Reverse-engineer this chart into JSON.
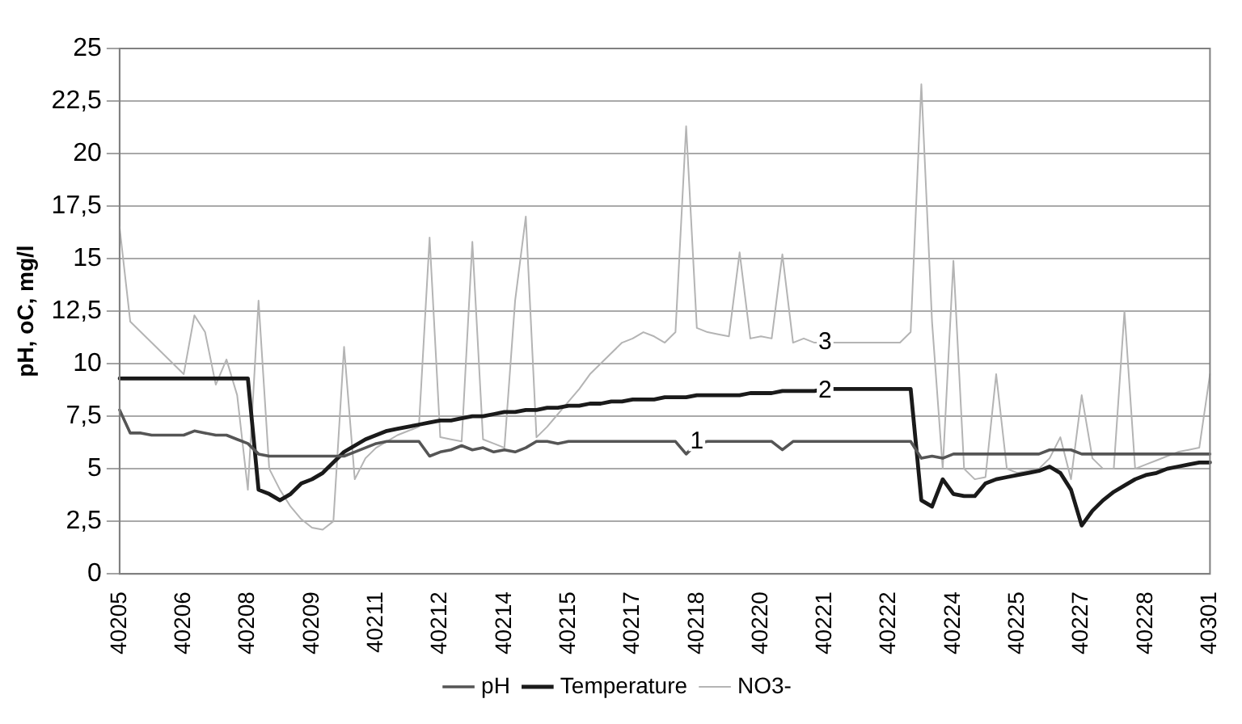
{
  "chart_data": {
    "type": "line",
    "ylabel": "pH, oC, mg/l",
    "categories": [
      "40205",
      null,
      null,
      null,
      null,
      null,
      "40206",
      null,
      null,
      null,
      null,
      null,
      "40208",
      null,
      null,
      null,
      null,
      null,
      "40209",
      null,
      null,
      null,
      null,
      null,
      "40211",
      null,
      null,
      null,
      null,
      null,
      "40212",
      null,
      null,
      null,
      null,
      null,
      "40214",
      null,
      null,
      null,
      null,
      null,
      "40215",
      null,
      null,
      null,
      null,
      null,
      "40217",
      null,
      null,
      null,
      null,
      null,
      "40218",
      null,
      null,
      null,
      null,
      null,
      "40220",
      null,
      null,
      null,
      null,
      null,
      "40221",
      null,
      null,
      null,
      null,
      null,
      "40222",
      null,
      null,
      null,
      null,
      null,
      "40224",
      null,
      null,
      null,
      null,
      null,
      "40225",
      null,
      null,
      null,
      null,
      null,
      "40227",
      null,
      null,
      null,
      null,
      null,
      "40228",
      null,
      null,
      null,
      null,
      null,
      "40301"
    ],
    "series": [
      {
        "name": "pH",
        "color": "#555555",
        "values": [
          7.8,
          6.7,
          6.7,
          6.6,
          6.6,
          6.6,
          6.6,
          6.8,
          6.7,
          6.6,
          6.6,
          6.4,
          6.2,
          5.7,
          5.6,
          5.6,
          5.6,
          5.6,
          5.6,
          5.6,
          5.6,
          5.6,
          5.8,
          6.0,
          6.2,
          6.3,
          6.3,
          6.3,
          6.3,
          5.6,
          5.8,
          5.9,
          6.1,
          5.9,
          6.0,
          5.8,
          5.9,
          5.8,
          6.0,
          6.3,
          6.3,
          6.2,
          6.3,
          6.3,
          6.3,
          6.3,
          6.3,
          6.3,
          6.3,
          6.3,
          6.3,
          6.3,
          6.3,
          5.7,
          6.2,
          6.3,
          6.3,
          6.3,
          6.3,
          6.3,
          6.3,
          6.3,
          5.9,
          6.3,
          6.3,
          6.3,
          6.3,
          6.3,
          6.3,
          6.3,
          6.3,
          6.3,
          6.3,
          6.3,
          6.3,
          5.5,
          5.6,
          5.5,
          5.7,
          5.7,
          5.7,
          5.7,
          5.7,
          5.7,
          5.7,
          5.7,
          5.7,
          5.9,
          5.9,
          5.9,
          5.7,
          5.7,
          5.7,
          5.7,
          5.7,
          5.7,
          5.7,
          5.7,
          5.7,
          5.7,
          5.7,
          5.7,
          5.7
        ],
        "value_labels": [
          null,
          null,
          null,
          null,
          null,
          null,
          null,
          null,
          null,
          null,
          null,
          null,
          null,
          null,
          null,
          null,
          null,
          null,
          null,
          null,
          null,
          null,
          null,
          null,
          null,
          null,
          null,
          null,
          null,
          null,
          null,
          null,
          null,
          null,
          null,
          null,
          null,
          null,
          null,
          null,
          null,
          null,
          null,
          null,
          null,
          null,
          null,
          null,
          null,
          null,
          null,
          null,
          null,
          null,
          null,
          null,
          null,
          null,
          null,
          null,
          null,
          null,
          null,
          null,
          null,
          null,
          null,
          null,
          null,
          null,
          null,
          null,
          null,
          null,
          null,
          null,
          null,
          null,
          null,
          null,
          null,
          null,
          null,
          null,
          null,
          null,
          null,
          null,
          null,
          null,
          null,
          null,
          null,
          null,
          null,
          null,
          null,
          null,
          null,
          null,
          null,
          null,
          null
        ]
      },
      {
        "name": "Temperature",
        "color": "#1a1a1a",
        "values": [
          9.3,
          9.3,
          9.3,
          9.3,
          9.3,
          9.3,
          9.3,
          9.3,
          9.3,
          9.3,
          9.3,
          9.3,
          9.3,
          4.0,
          3.8,
          3.5,
          3.8,
          4.3,
          4.5,
          4.8,
          5.3,
          5.8,
          6.1,
          6.4,
          6.6,
          6.8,
          6.9,
          7.0,
          7.1,
          7.2,
          7.3,
          7.3,
          7.4,
          7.5,
          7.5,
          7.6,
          7.7,
          7.7,
          7.8,
          7.8,
          7.9,
          7.9,
          8.0,
          8.0,
          8.1,
          8.1,
          8.2,
          8.2,
          8.3,
          8.3,
          8.3,
          8.4,
          8.4,
          8.4,
          8.5,
          8.5,
          8.5,
          8.5,
          8.5,
          8.6,
          8.6,
          8.6,
          8.7,
          8.7,
          8.7,
          8.7,
          8.8,
          8.8,
          8.8,
          8.8,
          8.8,
          8.8,
          8.8,
          8.8,
          8.8,
          3.5,
          3.2,
          4.5,
          3.8,
          3.7,
          3.7,
          4.3,
          4.5,
          4.6,
          4.7,
          4.8,
          4.9,
          5.1,
          4.8,
          4.0,
          2.3,
          3.0,
          3.5,
          3.9,
          4.2,
          4.5,
          4.7,
          4.8,
          5.0,
          5.1,
          5.2,
          5.3,
          5.3
        ],
        "value_labels": [
          null,
          null,
          null,
          null,
          null,
          null,
          null,
          null,
          null,
          null,
          null,
          null,
          null,
          null,
          null,
          null,
          null,
          null,
          null,
          null,
          null,
          null,
          null,
          null,
          null,
          null,
          null,
          null,
          null,
          null,
          null,
          null,
          null,
          null,
          null,
          null,
          null,
          null,
          null,
          null,
          null,
          null,
          null,
          null,
          null,
          null,
          null,
          null,
          null,
          null,
          null,
          null,
          null,
          null,
          null,
          null,
          null,
          null,
          null,
          null,
          null,
          null,
          null,
          null,
          null,
          null,
          null,
          null,
          null,
          null,
          null,
          null,
          null,
          null,
          null,
          null,
          null,
          null,
          null,
          null,
          null,
          null,
          null,
          null,
          null,
          null,
          null,
          null,
          null,
          null,
          null,
          null,
          null,
          null,
          null,
          null,
          null,
          null,
          null,
          null,
          null,
          null,
          null
        ]
      },
      {
        "name": "NO3-",
        "color": "#b4b4b4",
        "values": [
          16.5,
          12,
          11.5,
          11,
          10.5,
          10,
          9.5,
          12.3,
          11.5,
          9,
          10.2,
          8.5,
          4,
          13,
          5,
          4,
          3.2,
          2.6,
          2.2,
          2.1,
          2.5,
          10.8,
          4.5,
          5.5,
          6,
          6.3,
          6.6,
          6.8,
          7,
          16,
          6.5,
          6.4,
          6.3,
          15.8,
          6.4,
          6.2,
          6,
          13,
          17,
          6.5,
          7,
          7.6,
          8.2,
          8.8,
          9.5,
          10,
          10.5,
          11,
          11.2,
          11.5,
          11.3,
          11,
          11.5,
          21.3,
          11.7,
          11.5,
          11.4,
          11.3,
          15.3,
          11.2,
          11.3,
          11.2,
          15.2,
          11,
          11.2,
          11,
          11,
          11,
          11,
          11,
          11,
          11,
          11,
          11,
          11.5,
          23.3,
          12,
          5,
          14.9,
          5,
          4.5,
          4.6,
          9.5,
          5,
          4.8,
          4.9,
          5,
          5.5,
          6.5,
          4.5,
          8.5,
          5.5,
          5,
          5,
          12.5,
          5,
          5.2,
          5.4,
          5.6,
          5.8,
          5.9,
          6,
          9.5
        ],
        "value_labels": [
          null,
          null,
          null,
          null,
          null,
          null,
          null,
          null,
          null,
          null,
          null,
          null,
          null,
          null,
          null,
          null,
          null,
          null,
          null,
          null,
          null,
          null,
          null,
          null,
          null,
          null,
          null,
          null,
          null,
          null,
          null,
          null,
          null,
          null,
          null,
          null,
          null,
          null,
          null,
          null,
          null,
          null,
          null,
          null,
          null,
          null,
          null,
          null,
          null,
          null,
          null,
          null,
          null,
          null,
          null,
          null,
          null,
          null,
          null,
          null,
          null,
          null,
          null,
          null,
          null,
          null,
          null,
          null,
          null,
          null,
          null,
          null,
          null,
          null,
          null,
          null,
          null,
          null,
          null,
          null,
          null,
          null,
          null,
          null,
          null,
          null,
          null,
          null,
          null,
          null,
          null,
          null,
          null,
          null,
          null,
          null,
          null,
          null,
          null,
          null,
          null,
          null,
          null
        ]
      }
    ],
    "ylim": [
      0,
      25
    ],
    "yticks": [
      0,
      {
        "value": 2.5,
        "label": "2,5"
      },
      5,
      {
        "value": 7.5,
        "label": "7,5"
      },
      10,
      {
        "value": 12.5,
        "label": "12,5"
      },
      15,
      {
        "value": 17.5,
        "label": "17,5"
      },
      20,
      {
        "value": 22.5,
        "label": "22,5"
      },
      25
    ],
    "annotations": [
      {
        "text": "1",
        "x": "40218",
        "y": 6.3
      },
      {
        "text": "2",
        "x": "40221",
        "y": 8.7
      },
      {
        "text": "3",
        "x": "40221",
        "y": 11
      }
    ],
    "grid": "y",
    "legend": "bottom",
    "marker": "none",
    "line_style": "solid"
  }
}
